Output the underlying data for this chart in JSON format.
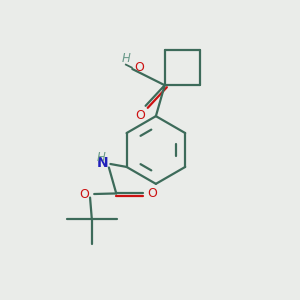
{
  "background_color": "#eaece9",
  "bond_color": "#3d6b5a",
  "oxygen_color": "#cc1111",
  "nitrogen_color": "#2020bb",
  "h_color": "#6a9a8a",
  "line_width": 1.6,
  "fig_size": [
    3.0,
    3.0
  ],
  "dpi": 100,
  "xlim": [
    0,
    10
  ],
  "ylim": [
    0,
    10
  ]
}
